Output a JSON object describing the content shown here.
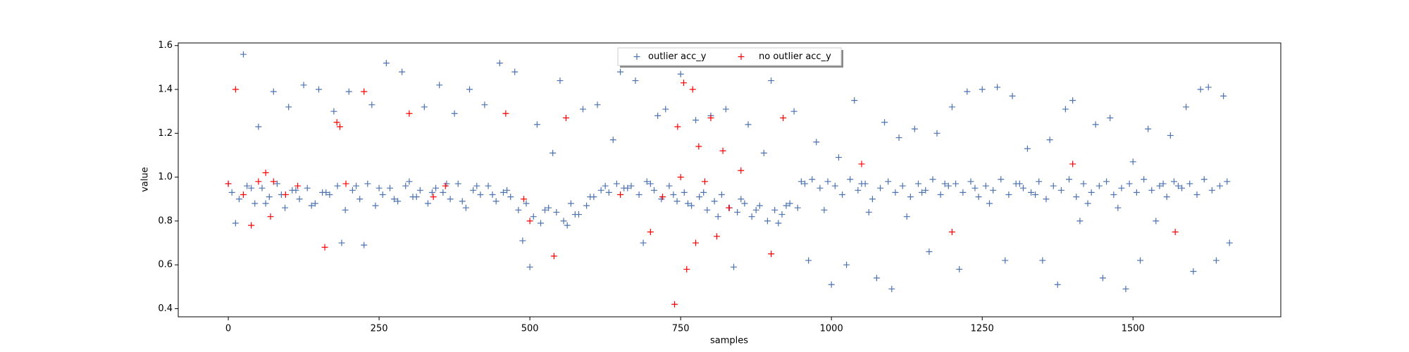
{
  "chart_data": {
    "type": "scatter",
    "xlabel": "samples",
    "ylabel": "value",
    "xlim": [
      -83,
      1745
    ],
    "ylim": [
      0.363,
      1.612
    ],
    "xticks": [
      0,
      250,
      500,
      750,
      1000,
      1250,
      1500
    ],
    "yticks": [
      0.4,
      0.6,
      0.8,
      {
        "value": 1,
        "label": "1.0"
      },
      1.2,
      1.4,
      1.6
    ],
    "legend": "upper center",
    "marker": "+",
    "series": [
      {
        "name": "outlier acc_y",
        "color": "#4c72b0",
        "x": [
          0,
          12,
          25,
          38,
          50,
          62,
          75,
          88,
          100,
          112,
          125,
          138,
          150,
          162,
          175,
          188,
          200,
          212,
          225,
          238,
          250,
          262,
          275,
          288,
          300,
          312,
          325,
          338,
          350,
          362,
          375,
          388,
          400,
          412,
          425,
          438,
          450,
          462,
          475,
          488,
          500,
          512,
          525,
          538,
          550,
          562,
          575,
          588,
          600,
          612,
          625,
          638,
          650,
          662,
          675,
          688,
          700,
          712,
          725,
          738,
          750,
          762,
          775,
          788,
          800,
          812,
          825,
          838,
          850,
          862,
          875,
          888,
          900,
          912,
          925,
          938,
          950,
          962,
          975,
          988,
          1000,
          1012,
          1025,
          1038,
          1050,
          1062,
          1075,
          1088,
          1100,
          1112,
          1125,
          1138,
          1150,
          1162,
          1175,
          1188,
          1200,
          1212,
          1225,
          1238,
          1250,
          1262,
          1275,
          1288,
          1300,
          1312,
          1325,
          1338,
          1350,
          1362,
          1375,
          1388,
          1400,
          1412,
          1425,
          1438,
          1450,
          1462,
          1475,
          1488,
          1500,
          1512,
          1525,
          1538,
          1550,
          1562,
          1575,
          1588,
          1600,
          1612,
          1625,
          1638,
          1650,
          1660,
          6,
          18,
          31,
          44,
          56,
          68,
          81,
          94,
          106,
          118,
          131,
          144,
          156,
          168,
          181,
          194,
          206,
          218,
          231,
          244,
          256,
          268,
          281,
          294,
          306,
          318,
          331,
          344,
          356,
          368,
          381,
          394,
          406,
          418,
          431,
          444,
          456,
          468,
          481,
          494,
          506,
          518,
          531,
          544,
          556,
          568,
          581,
          594,
          606,
          618,
          631,
          644,
          656,
          668,
          681,
          694,
          706,
          718,
          731,
          744,
          756,
          768,
          781,
          794,
          806,
          818,
          831,
          844,
          856,
          868,
          881,
          894,
          906,
          918,
          931,
          944,
          956,
          968,
          981,
          994,
          1006,
          1018,
          1031,
          1044,
          1056,
          1068,
          1081,
          1094,
          1106,
          1118,
          1131,
          1144,
          1156,
          1168,
          1181,
          1194,
          1206,
          1218,
          1231,
          1244,
          1256,
          1268,
          1281,
          1294,
          1306,
          1318,
          1331,
          1344,
          1356,
          1368,
          1381,
          1394,
          1406,
          1418,
          1431,
          1444,
          1456,
          1468,
          1481,
          1494,
          1506,
          1518,
          1531,
          1544,
          1556,
          1568,
          1581,
          1594,
          1606,
          1618,
          1631,
          1644,
          1656
        ],
        "values": [
          0.97,
          0.79,
          1.56,
          0.95,
          1.23,
          0.88,
          1.39,
          0.92,
          1.32,
          0.94,
          1.42,
          0.87,
          1.4,
          0.93,
          1.3,
          0.7,
          1.39,
          0.96,
          0.69,
          1.33,
          0.95,
          1.52,
          0.9,
          1.48,
          0.98,
          0.91,
          1.32,
          0.93,
          1.42,
          0.97,
          1.29,
          0.89,
          1.4,
          0.96,
          1.33,
          0.92,
          1.52,
          0.94,
          1.48,
          0.71,
          0.59,
          1.24,
          0.85,
          1.11,
          1.44,
          0.78,
          0.83,
          1.31,
          0.91,
          1.33,
          0.96,
          1.17,
          1.48,
          0.95,
          1.44,
          0.7,
          0.97,
          1.28,
          1.31,
          0.92,
          1.47,
          0.88,
          1.26,
          0.93,
          1.28,
          0.82,
          1.31,
          0.59,
          0.9,
          1.24,
          0.85,
          1.11,
          1.44,
          0.79,
          0.87,
          1.3,
          0.98,
          0.62,
          1.16,
          0.85,
          0.51,
          1.09,
          0.6,
          1.35,
          0.97,
          0.84,
          0.54,
          1.25,
          0.49,
          1.18,
          0.82,
          1.22,
          0.93,
          0.66,
          1.2,
          0.97,
          1.32,
          0.58,
          1.39,
          0.95,
          1.4,
          0.88,
          1.41,
          0.62,
          1.37,
          0.97,
          1.13,
          0.92,
          0.62,
          1.17,
          0.51,
          1.31,
          1.35,
          0.8,
          0.88,
          1.24,
          0.54,
          1.27,
          0.86,
          0.49,
          1.07,
          0.62,
          1.22,
          0.8,
          0.97,
          1.19,
          0.96,
          1.32,
          0.57,
          1.4,
          1.41,
          0.62,
          1.37,
          0.7,
          0.93,
          0.9,
          0.96,
          0.88,
          0.95,
          0.91,
          0.97,
          0.86,
          0.94,
          0.9,
          0.95,
          0.88,
          0.93,
          0.92,
          0.96,
          0.85,
          0.94,
          0.9,
          0.97,
          0.87,
          0.92,
          0.95,
          0.89,
          0.96,
          0.91,
          0.94,
          0.88,
          0.95,
          0.93,
          0.9,
          0.97,
          0.86,
          0.94,
          0.92,
          0.96,
          0.89,
          0.93,
          0.91,
          0.85,
          0.88,
          0.82,
          0.79,
          0.86,
          0.84,
          0.8,
          0.88,
          0.83,
          0.87,
          0.91,
          0.94,
          0.93,
          0.97,
          0.95,
          0.96,
          0.92,
          0.98,
          0.94,
          0.9,
          0.96,
          0.89,
          0.93,
          0.87,
          0.91,
          0.85,
          0.89,
          0.92,
          0.86,
          0.84,
          0.88,
          0.82,
          0.87,
          0.8,
          0.85,
          0.83,
          0.88,
          0.86,
          0.97,
          0.99,
          0.95,
          0.98,
          0.96,
          0.92,
          0.99,
          0.94,
          0.97,
          0.9,
          0.95,
          0.98,
          0.93,
          0.96,
          0.91,
          0.97,
          0.94,
          0.99,
          0.92,
          0.96,
          0.97,
          0.93,
          0.98,
          0.91,
          0.96,
          0.94,
          0.99,
          0.92,
          0.97,
          0.95,
          0.93,
          0.98,
          0.9,
          0.96,
          0.94,
          0.99,
          0.91,
          0.97,
          0.93,
          0.96,
          0.98,
          0.92,
          0.95,
          0.97,
          0.93,
          0.99,
          0.94,
          0.96,
          0.91,
          0.98,
          0.95,
          0.97,
          0.92,
          0.99,
          0.94,
          0.96,
          0.98
        ]
      },
      {
        "name": "no outlier acc_y",
        "color": "#ff0000",
        "x": [
          0,
          12,
          25,
          38,
          50,
          62,
          70,
          75,
          95,
          115,
          160,
          180,
          185,
          195,
          225,
          300,
          340,
          360,
          460,
          490,
          500,
          540,
          560,
          650,
          700,
          720,
          740,
          745,
          750,
          755,
          760,
          770,
          775,
          780,
          790,
          800,
          810,
          820,
          830,
          850,
          900,
          920,
          1050,
          1200,
          1400,
          1570
        ],
        "values": [
          0.97,
          1.4,
          0.92,
          0.78,
          0.98,
          1.02,
          0.82,
          0.98,
          0.92,
          0.96,
          0.68,
          1.25,
          1.23,
          0.97,
          1.39,
          1.29,
          0.91,
          0.96,
          1.29,
          0.9,
          0.8,
          0.64,
          1.27,
          0.92,
          0.75,
          0.91,
          0.42,
          1.23,
          1.0,
          1.43,
          0.58,
          1.4,
          0.7,
          1.14,
          0.98,
          1.27,
          0.73,
          1.12,
          0.86,
          1.03,
          0.65,
          1.27,
          1.06,
          0.75,
          1.06,
          0.75
        ]
      }
    ]
  }
}
